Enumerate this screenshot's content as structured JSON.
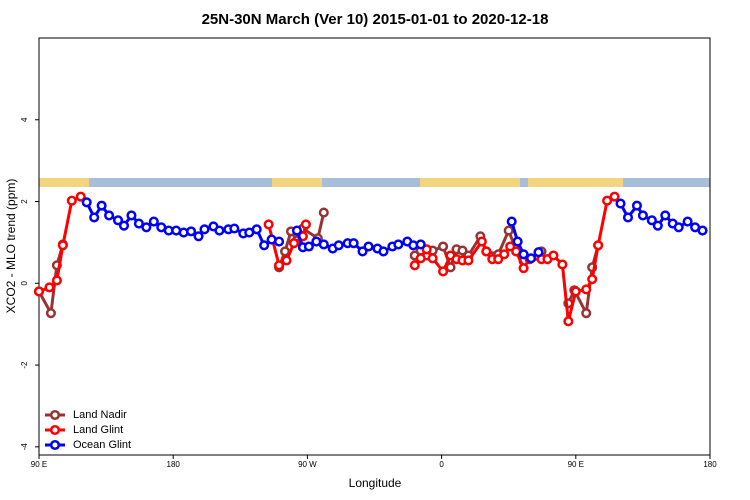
{
  "chart_data": {
    "type": "line",
    "title": "25N-30N March (Ver 10)   2015-01-01 to 2020-12-18",
    "x_label": "Longitude",
    "y_label": "XCO2 - MLO trend (ppm)",
    "xlim": [
      90,
      540
    ],
    "xticks": [
      {
        "value": 90,
        "label": "90 E"
      },
      {
        "value": 180,
        "label": "180"
      },
      {
        "value": 270,
        "label": "90 W"
      },
      {
        "value": 360,
        "label": "0"
      },
      {
        "value": 450,
        "label": "90 E"
      },
      {
        "value": 540,
        "label": "180"
      }
    ],
    "ylim": [
      -4.2,
      6
    ],
    "yticks": [
      -4,
      -2,
      0,
      2,
      4
    ],
    "legend": "bottomleft",
    "series": [
      {
        "name": "Land Nadir",
        "color": "#993333",
        "x": [
          90,
          98,
          102,
          106,
          null,
          251,
          255,
          259,
          263,
          267,
          277,
          281,
          null,
          342,
          346,
          350,
          354,
          361,
          366,
          370,
          374,
          378,
          386,
          390,
          398,
          405,
          409,
          415,
          427,
          null,
          445,
          449,
          457,
          461,
          465
        ],
        "values": [
          -0.2,
          -0.73,
          0.44,
          0.95,
          null,
          0.39,
          0.78,
          1.27,
          1.05,
          1.34,
          1.1,
          1.73,
          null,
          0.68,
          0.8,
          0.68,
          0.8,
          0.9,
          0.39,
          0.83,
          0.8,
          0.68,
          1.15,
          0.78,
          0.71,
          1.29,
          0.9,
          0.54,
          0.78,
          null,
          -0.49,
          -0.17,
          -0.73,
          0.39,
          0.93
        ]
      },
      {
        "name": "Land Glint",
        "color": "#ff0000",
        "x": [
          90,
          97,
          102,
          106,
          112,
          118,
          null,
          244,
          251,
          256,
          261,
          267,
          269,
          null,
          342,
          346,
          350,
          354,
          361,
          366,
          370,
          374,
          378,
          387,
          390,
          394,
          398,
          402,
          406,
          410,
          415,
          419,
          427,
          431,
          435,
          441,
          445,
          450,
          457,
          461,
          465,
          471,
          476
        ],
        "values": [
          -0.2,
          -0.1,
          0.07,
          0.93,
          2.02,
          2.12,
          null,
          1.44,
          0.44,
          0.56,
          0.98,
          1.15,
          1.44,
          null,
          0.44,
          0.61,
          0.83,
          0.61,
          0.29,
          0.68,
          0.59,
          0.56,
          0.56,
          1.02,
          0.78,
          0.59,
          0.59,
          0.71,
          0.9,
          0.78,
          0.37,
          0.59,
          0.59,
          0.59,
          0.68,
          0.46,
          -0.93,
          -0.2,
          -0.15,
          0.1,
          0.93,
          2.02,
          2.12
        ]
      },
      {
        "name": "Ocean Glint",
        "color": "#0000ff",
        "x": [
          122,
          127,
          132,
          137,
          143,
          147,
          152,
          157,
          162,
          167,
          172,
          177,
          182,
          187,
          192,
          197,
          201,
          207,
          211,
          217,
          221,
          227,
          231,
          236,
          241,
          246,
          251,
          null,
          263,
          267,
          271,
          276,
          281,
          287,
          291,
          297,
          301,
          307,
          311,
          317,
          321,
          327,
          331,
          337,
          341,
          346,
          null,
          407,
          411,
          415,
          420,
          425,
          null,
          480,
          485,
          491,
          495,
          501,
          505,
          510,
          515,
          519,
          525,
          530,
          535
        ],
        "values": [
          1.98,
          1.61,
          1.9,
          1.66,
          1.54,
          1.41,
          1.66,
          1.46,
          1.37,
          1.51,
          1.37,
          1.29,
          1.29,
          1.24,
          1.27,
          1.15,
          1.32,
          1.39,
          1.29,
          1.32,
          1.34,
          1.22,
          1.24,
          1.32,
          0.93,
          1.07,
          1.02,
          null,
          1.29,
          0.88,
          0.9,
          1.02,
          0.95,
          0.85,
          0.93,
          0.98,
          0.98,
          0.78,
          0.9,
          0.85,
          0.78,
          0.9,
          0.95,
          1.02,
          0.93,
          0.95,
          null,
          1.51,
          1.02,
          0.71,
          0.61,
          0.76,
          null,
          1.95,
          1.61,
          1.9,
          1.66,
          1.54,
          1.41,
          1.66,
          1.46,
          1.37,
          1.51,
          1.37,
          1.29
        ]
      }
    ]
  }
}
